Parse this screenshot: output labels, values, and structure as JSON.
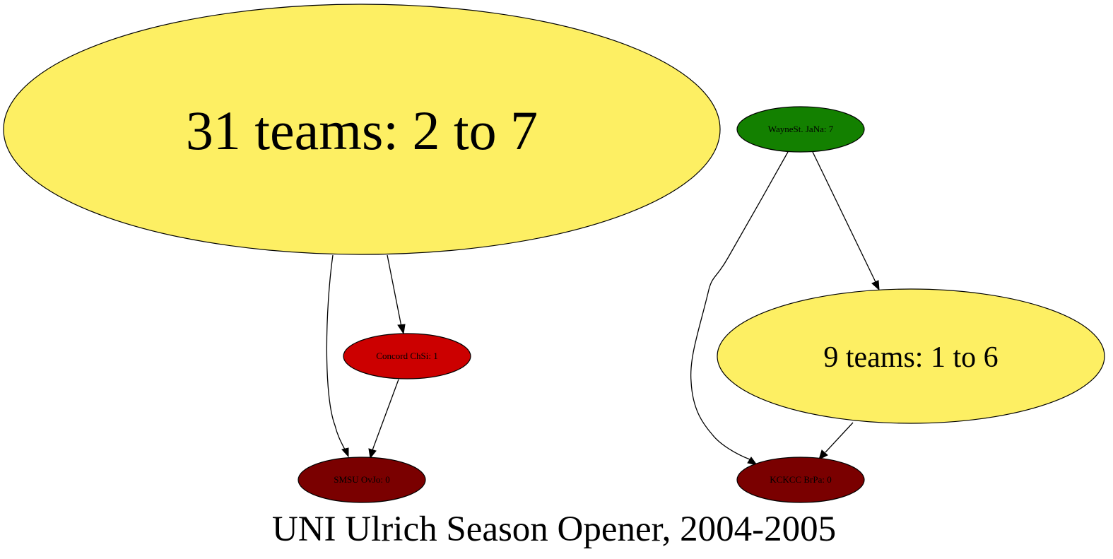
{
  "title": "UNI Ulrich Season Opener, 2004-2005",
  "nodes": {
    "big_group": {
      "label": "31 teams: 2 to 7",
      "color": "#fdef63"
    },
    "wayne": {
      "label": "WayneSt. JaNa: 7",
      "color": "#138000"
    },
    "concord": {
      "label": "Concord ChSi: 1",
      "color": "#cc0000"
    },
    "small_group": {
      "label": "9 teams: 1 to 6",
      "color": "#fdef63"
    },
    "smsu": {
      "label": "SMSU OvJo: 0",
      "color": "#7a0000"
    },
    "kckcc": {
      "label": "KCKCC BrPa: 0",
      "color": "#7a0000"
    }
  },
  "edges": [
    {
      "from": "31 teams: 2 to 7",
      "to": "Concord ChSi: 1"
    },
    {
      "from": "31 teams: 2 to 7",
      "to": "SMSU OvJo: 0"
    },
    {
      "from": "Concord ChSi: 1",
      "to": "SMSU OvJo: 0"
    },
    {
      "from": "WayneSt. JaNa: 7",
      "to": "9 teams: 1 to 6"
    },
    {
      "from": "WayneSt. JaNa: 7",
      "to": "KCKCC BrPa: 0"
    },
    {
      "from": "9 teams: 1 to 6",
      "to": "KCKCC BrPa: 0"
    }
  ]
}
